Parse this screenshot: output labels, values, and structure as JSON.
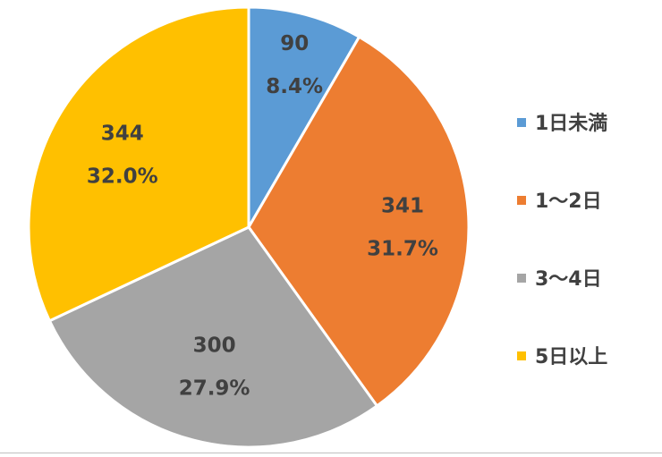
{
  "chart_data": {
    "type": "pie",
    "title": "",
    "categories": [
      "1日未満",
      "1～2日",
      "3～4日",
      "5日以上"
    ],
    "values": [
      90,
      341,
      300,
      344
    ],
    "percent_labels": [
      "8.4%",
      "31.7%",
      "27.9%",
      "32.0%"
    ],
    "value_labels": [
      "90",
      "341",
      "300",
      "344"
    ],
    "colors": [
      "#5b9bd5",
      "#ed7d31",
      "#a5a5a5",
      "#ffc000"
    ],
    "start_angle_deg": 0,
    "direction": "clockwise",
    "legend_position": "right"
  }
}
